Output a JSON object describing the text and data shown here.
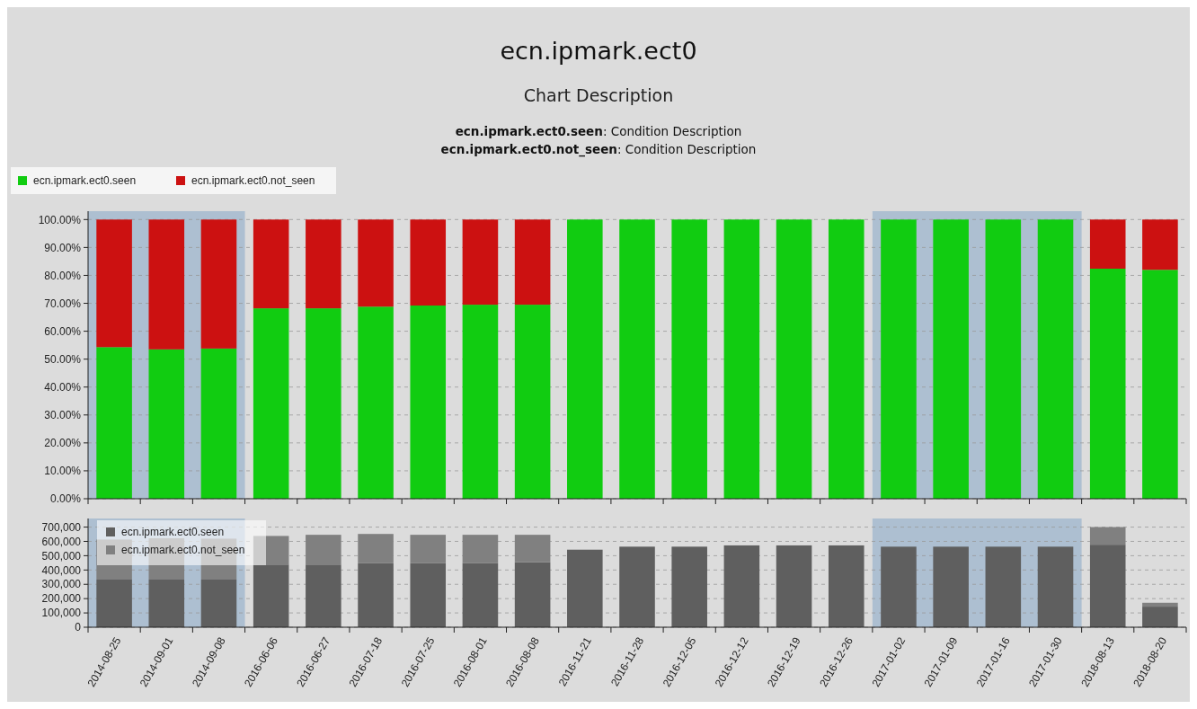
{
  "chart_data": [
    {
      "type": "bar",
      "title": "ecn.ipmark.ect0",
      "subtitle": "Chart Description",
      "annotations": [
        "ecn.ipmark.ect0.seen: Condition Description",
        "ecn.ipmark.ect0.not_seen: Condition Description"
      ],
      "categories": [
        "2014-08-25",
        "2014-09-01",
        "2014-09-08",
        "2016-06-06",
        "2016-06-27",
        "2016-07-18",
        "2016-07-25",
        "2016-08-01",
        "2016-08-08",
        "2016-11-21",
        "2016-11-28",
        "2016-12-05",
        "2016-12-12",
        "2016-12-19",
        "2016-12-26",
        "2017-01-02",
        "2017-01-09",
        "2017-01-16",
        "2017-01-30",
        "2018-08-13",
        "2018-08-20"
      ],
      "stacked": true,
      "series": [
        {
          "name": "ecn.ipmark.ect0.seen",
          "color": "#11cc11",
          "values": [
            54.3,
            53.5,
            53.8,
            68.2,
            68.2,
            68.8,
            69.2,
            69.5,
            69.5,
            100,
            100,
            100,
            100,
            100,
            100,
            100,
            100,
            100,
            100,
            82.4,
            82.0
          ]
        },
        {
          "name": "ecn.ipmark.ect0.not_seen",
          "color": "#cc1111",
          "values": [
            45.7,
            46.5,
            46.2,
            31.8,
            31.8,
            31.2,
            30.8,
            30.5,
            30.5,
            0,
            0,
            0,
            0,
            0,
            0,
            0,
            0,
            0,
            0,
            17.6,
            18.0
          ]
        }
      ],
      "ylim": [
        0,
        103
      ],
      "yticks": [
        {
          "value": 0,
          "label": "0.00%"
        },
        {
          "value": 10,
          "label": "10.00%"
        },
        {
          "value": 20,
          "label": "20.00%"
        },
        {
          "value": 30,
          "label": "30.00%"
        },
        {
          "value": 40,
          "label": "40.00%"
        },
        {
          "value": 50,
          "label": "50.00%"
        },
        {
          "value": 60,
          "label": "60.00%"
        },
        {
          "value": 70,
          "label": "70.00%"
        },
        {
          "value": 80,
          "label": "80.00%"
        },
        {
          "value": 90,
          "label": "90.00%"
        },
        {
          "value": 100,
          "label": "100.00%"
        }
      ],
      "grid": "y",
      "legend": "top left",
      "tick_labels": "y",
      "bands": [
        {
          "axis": "x",
          "from": "2014-08-25",
          "to": "2014-09-08",
          "color": "#adbfd1"
        },
        {
          "axis": "x",
          "from": "2017-01-02",
          "to": "2017-01-30",
          "color": "#adbfd1"
        }
      ]
    },
    {
      "type": "bar",
      "categories": [
        "2014-08-25",
        "2014-09-01",
        "2014-09-08",
        "2016-06-06",
        "2016-06-27",
        "2016-07-18",
        "2016-07-25",
        "2016-08-01",
        "2016-08-08",
        "2016-11-21",
        "2016-11-28",
        "2016-12-05",
        "2016-12-12",
        "2016-12-19",
        "2016-12-26",
        "2017-01-02",
        "2017-01-09",
        "2017-01-16",
        "2017-01-30",
        "2018-08-13",
        "2018-08-20"
      ],
      "stacked": true,
      "series": [
        {
          "name": "ecn.ipmark.ect0.seen",
          "color": "#5f5f5f",
          "values": [
            333000,
            333000,
            333000,
            438000,
            438000,
            447000,
            447000,
            447000,
            455000,
            542000,
            563000,
            563000,
            572000,
            572000,
            572000,
            563000,
            563000,
            563000,
            563000,
            577000,
            144000
          ]
        },
        {
          "name": "ecn.ipmark.ect0.not_seen",
          "color": "#808080",
          "values": [
            280000,
            289000,
            286000,
            200000,
            208000,
            205000,
            199000,
            199000,
            191000,
            0,
            0,
            0,
            0,
            0,
            0,
            0,
            0,
            0,
            0,
            123000,
            27000
          ]
        }
      ],
      "ylim": [
        0,
        760000
      ],
      "yticks": [
        {
          "value": 0,
          "label": "0"
        },
        {
          "value": 100000,
          "label": "100,000"
        },
        {
          "value": 200000,
          "label": "200,000"
        },
        {
          "value": 300000,
          "label": "300,000"
        },
        {
          "value": 400000,
          "label": "400,000"
        },
        {
          "value": 500000,
          "label": "500,000"
        },
        {
          "value": 600000,
          "label": "600,000"
        },
        {
          "value": 700000,
          "label": "700,000"
        }
      ],
      "grid": "y",
      "legend": "top left",
      "bands": [
        {
          "axis": "x",
          "from": "2014-08-25",
          "to": "2014-09-08",
          "color": "#adbfd1"
        },
        {
          "axis": "x",
          "from": "2017-01-02",
          "to": "2017-01-30",
          "color": "#adbfd1"
        }
      ]
    }
  ]
}
